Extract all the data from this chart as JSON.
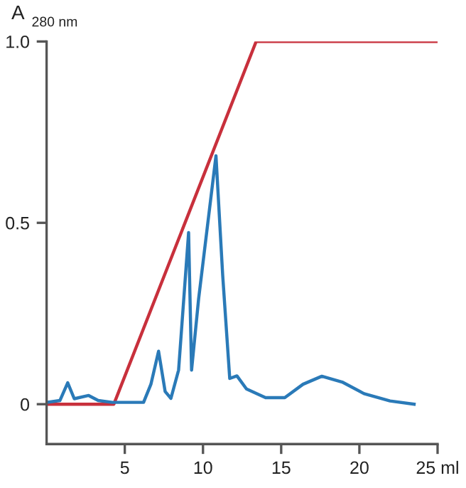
{
  "chart_data": {
    "type": "line",
    "ylabel": "A$_{280 nm}$",
    "xlim": [
      0,
      25
    ],
    "xticks": [
      5,
      10,
      15,
      20,
      {
        "value": 25,
        "label": "25 ml"
      }
    ],
    "ylim": [
      -0.11,
      1.0
    ],
    "yticks": [
      0,
      0.5,
      {
        "value": 1.0,
        "label": "1.0"
      }
    ],
    "grid": false,
    "marker": "none",
    "line_style": "solid",
    "series": [
      {
        "color": "#c8303c",
        "x": [
          0,
          4.3,
          13.4,
          24.9
        ],
        "values": [
          0,
          0,
          1.0,
          1.0
        ]
      },
      {
        "color": "#2a7ab8",
        "x": [
          0,
          0.85,
          1.35,
          1.77,
          2.69,
          3.3,
          4.2,
          6.2,
          6.67,
          7.16,
          7.58,
          7.95,
          8.44,
          9.08,
          9.27,
          9.72,
          10.83,
          11.26,
          11.71,
          12.17,
          12.78,
          14.0,
          15.23,
          16.4,
          17.6,
          18.9,
          20.3,
          21.96,
          23.5
        ],
        "values": [
          0.005,
          0.01,
          0.059,
          0.015,
          0.024,
          0.01,
          0.005,
          0.005,
          0.055,
          0.146,
          0.035,
          0.016,
          0.094,
          0.473,
          0.094,
          0.29,
          0.685,
          0.355,
          0.071,
          0.078,
          0.042,
          0.018,
          0.018,
          0.055,
          0.077,
          0.061,
          0.029,
          0.009,
          0.0
        ]
      }
    ]
  }
}
